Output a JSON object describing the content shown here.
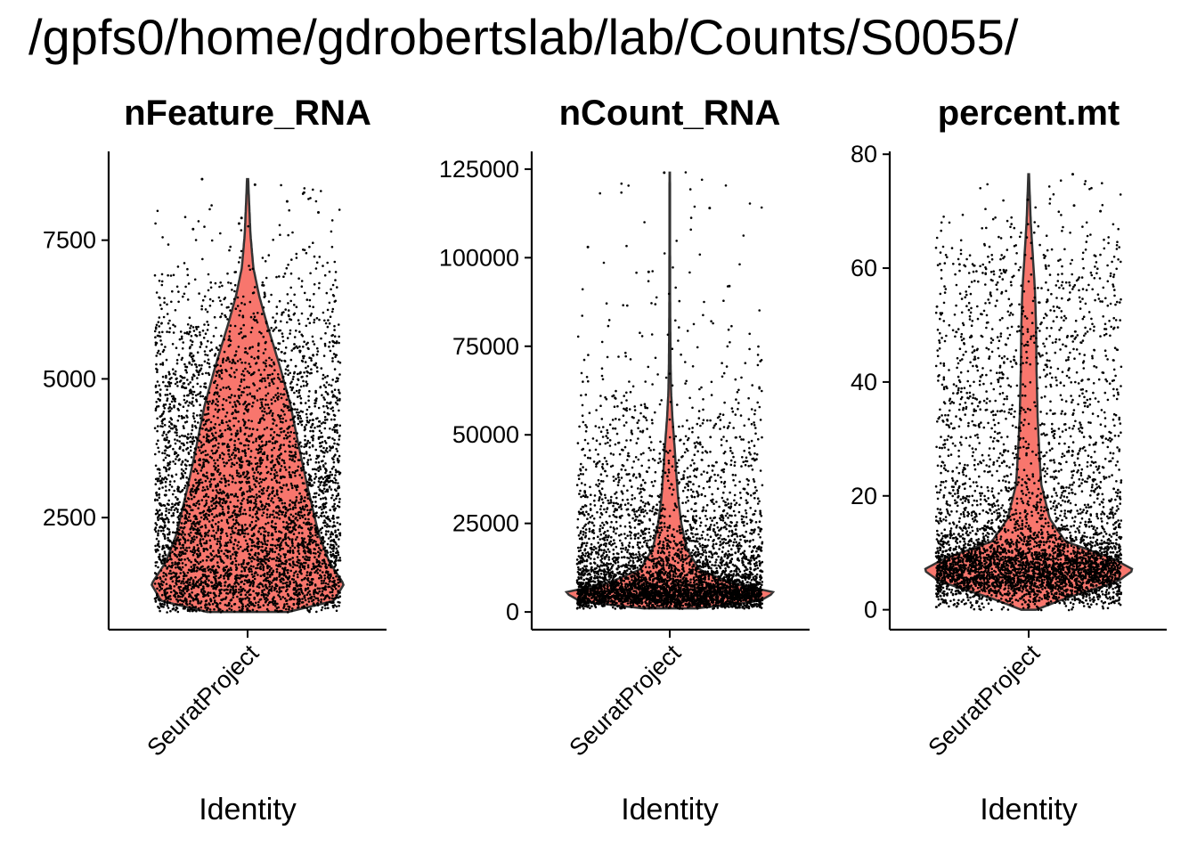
{
  "title": "/gpfs0/home/gdrobertslab/lab/Counts/S0055/",
  "colors": {
    "violin_fill": "#F8766D",
    "violin_stroke": "#333333",
    "points": "#000000",
    "axis": "#000000"
  },
  "chart_data": [
    {
      "type": "violin",
      "title": "nFeature_RNA",
      "xlabel": "Identity",
      "ylabel": "",
      "categories": [
        "SeuratProject"
      ],
      "ylim": [
        480,
        9100
      ],
      "yticks": [
        2500,
        5000,
        7500
      ],
      "ytick_labels": [
        "2500",
        "5000",
        "7500"
      ],
      "data_min": 800,
      "data_max": 8600,
      "density": [
        [
          800,
          0.42
        ],
        [
          1000,
          0.9
        ],
        [
          1300,
          1.0
        ],
        [
          1700,
          0.85
        ],
        [
          2200,
          0.74
        ],
        [
          3000,
          0.63
        ],
        [
          3800,
          0.53
        ],
        [
          4500,
          0.45
        ],
        [
          5200,
          0.34
        ],
        [
          6000,
          0.2
        ],
        [
          6500,
          0.12
        ],
        [
          7000,
          0.06
        ],
        [
          7600,
          0.03
        ],
        [
          8200,
          0.015
        ],
        [
          8600,
          0.006
        ]
      ],
      "jitter_points": 4800,
      "outliers": [
        8600,
        8500,
        8200,
        8000,
        7900,
        7800,
        7700
      ]
    },
    {
      "type": "violin",
      "title": "nCount_RNA",
      "xlabel": "Identity",
      "ylabel": "",
      "categories": [
        "SeuratProject"
      ],
      "ylim": [
        -5000,
        130000
      ],
      "yticks": [
        0,
        25000,
        50000,
        75000,
        100000,
        125000
      ],
      "ytick_labels": [
        "0",
        "25000",
        "50000",
        "75000",
        "100000",
        "125000"
      ],
      "data_min": 1000,
      "data_max": 124000,
      "density": [
        [
          1000,
          0.25
        ],
        [
          3000,
          0.85
        ],
        [
          5500,
          1.0
        ],
        [
          8000,
          0.6
        ],
        [
          12000,
          0.28
        ],
        [
          18000,
          0.16
        ],
        [
          25000,
          0.11
        ],
        [
          32000,
          0.08
        ],
        [
          40000,
          0.06
        ],
        [
          47000,
          0.045
        ],
        [
          55000,
          0.025
        ],
        [
          62000,
          0.013
        ],
        [
          70000,
          0.008
        ],
        [
          85000,
          0.004
        ],
        [
          100000,
          0.003
        ],
        [
          124000,
          0.002
        ]
      ],
      "jitter_points": 4800,
      "outliers": [
        124000,
        114000,
        103000,
        96000,
        92000
      ]
    },
    {
      "type": "violin",
      "title": "percent.mt",
      "xlabel": "Identity",
      "ylabel": "",
      "categories": [
        "SeuratProject"
      ],
      "ylim": [
        -3.5,
        80.5
      ],
      "yticks": [
        0,
        20,
        40,
        60,
        80
      ],
      "ytick_labels": [
        "0",
        "20",
        "40",
        "60",
        "80"
      ],
      "data_min": 0,
      "data_max": 76.5,
      "density": [
        [
          0,
          0.07
        ],
        [
          2,
          0.35
        ],
        [
          5,
          0.85
        ],
        [
          7,
          1.0
        ],
        [
          9,
          0.8
        ],
        [
          12,
          0.35
        ],
        [
          16,
          0.2
        ],
        [
          22,
          0.12
        ],
        [
          28,
          0.1
        ],
        [
          34,
          0.085
        ],
        [
          42,
          0.075
        ],
        [
          50,
          0.07
        ],
        [
          56,
          0.06
        ],
        [
          62,
          0.04
        ],
        [
          68,
          0.02
        ],
        [
          72,
          0.012
        ],
        [
          76.5,
          0.003
        ]
      ],
      "jitter_points": 4800,
      "outliers": [
        76.5,
        72,
        71,
        70
      ]
    }
  ]
}
